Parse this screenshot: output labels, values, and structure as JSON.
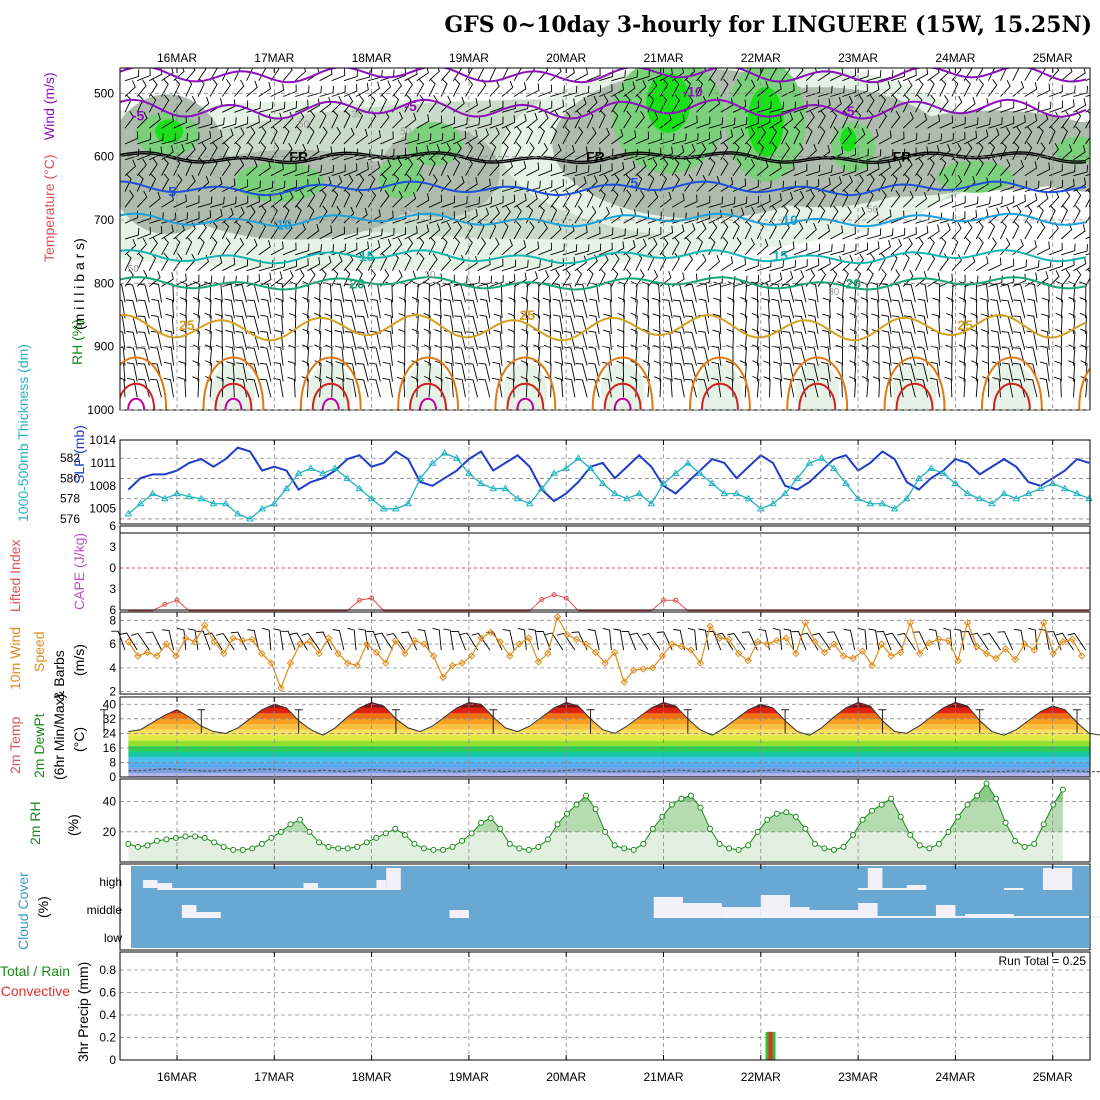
{
  "title": "GFS 0~10day 3-hourly for LINGUERE (15W, 15.25N)",
  "colors": {
    "rh_green_light": "#e6f2e6",
    "rh_green_mid": "#c9dcc9",
    "rh_gray": "#aebcae",
    "rh_green": "#7ccf7c",
    "rh_bright": "#19e019",
    "temp_neg": "#8a12b8",
    "temp_low": "#1e50d8",
    "temp_mid": "#1aa0dc",
    "temp_15": "#17b6b6",
    "temp_20": "#14a878",
    "temp_25": "#d4a020",
    "temp_30": "#e07a10",
    "temp_35": "#d02020",
    "temp_40": "#c000a0",
    "slp": "#1e3cc8",
    "thickness": "#20b4c0",
    "li": "#e05050",
    "cape": "#c050c8",
    "wind10": "#e08c1a",
    "rh2m": "#1a8a1a",
    "cloud": "#6aa8d4",
    "clear": "#f2f0f8",
    "precip_total": "#30c030",
    "precip_conv": "#e03030"
  },
  "chart_data": [
    {
      "name": "upper-air",
      "type": "heatmap",
      "dates": [
        "16MAR",
        "17MAR",
        "18MAR",
        "19MAR",
        "20MAR",
        "21MAR",
        "22MAR",
        "23MAR",
        "24MAR",
        "25MAR"
      ],
      "ylabels": [
        "RH (%)",
        "Temperature (°C)",
        "Wind (m/s)",
        "(m i l l i b a r s)"
      ],
      "yticks": [
        500,
        600,
        700,
        800,
        900,
        1000
      ],
      "ylim": [
        460,
        1000
      ],
      "contour_labels": [
        {
          "text": "-10",
          "t": 5.3,
          "p": 497
        },
        {
          "text": "-5",
          "t": -0.4,
          "p": 535
        },
        {
          "text": "-5",
          "t": 2.4,
          "p": 520
        },
        {
          "text": "-5",
          "t": 6.9,
          "p": 528
        },
        {
          "text": "FR",
          "t": 1.25,
          "p": 600
        },
        {
          "text": "FR",
          "t": 4.3,
          "p": 600
        },
        {
          "text": "FR",
          "t": 7.45,
          "p": 600
        },
        {
          "text": "5",
          "t": -0.05,
          "p": 655
        },
        {
          "text": "5",
          "t": 4.7,
          "p": 641
        },
        {
          "text": "10",
          "t": 1.1,
          "p": 707
        },
        {
          "text": "10",
          "t": 6.3,
          "p": 700
        },
        {
          "text": "15",
          "t": 1.95,
          "p": 757
        },
        {
          "text": "15",
          "t": 6.2,
          "p": 756
        },
        {
          "text": "20",
          "t": 1.85,
          "p": 800
        },
        {
          "text": "20",
          "t": 6.95,
          "p": 800
        },
        {
          "text": "25",
          "t": 0.1,
          "p": 866
        },
        {
          "text": "25",
          "t": 3.6,
          "p": 850
        },
        {
          "text": "25",
          "t": 8.1,
          "p": 866
        }
      ],
      "rh_labels": [
        {
          "text": "50",
          "t": 1.3,
          "p": 548
        },
        {
          "text": "30",
          "t": 1.85,
          "p": 532
        },
        {
          "text": "50",
          "t": 2.35,
          "p": 559
        },
        {
          "text": "50",
          "t": 2.35,
          "p": 685
        },
        {
          "text": "30",
          "t": 2.6,
          "p": 785
        },
        {
          "text": "50",
          "t": -0.45,
          "p": 776
        },
        {
          "text": "50",
          "t": 7.15,
          "p": 682
        },
        {
          "text": "30",
          "t": 6.75,
          "p": 812
        }
      ]
    },
    {
      "name": "slp-thickness",
      "type": "line",
      "ylabel_left": "1000-500mb Thickness (dm)",
      "ylabel_right": "SLP (mb)",
      "yticks_left": [
        576,
        578,
        580,
        582
      ],
      "yticks_right": [
        1005,
        1008,
        1011,
        1014
      ],
      "ylim_left": [
        575.5,
        583.8
      ],
      "ylim_right": [
        1003,
        1014
      ],
      "t_start": -0.5,
      "t_step": 0.125,
      "series": [
        {
          "name": "SLP (mb)",
          "axis": "right",
          "values": [
            1007.5,
            1009.0,
            1009.5,
            1009.5,
            1010.0,
            1011.0,
            1011.5,
            1010.5,
            1011.5,
            1013.0,
            1012.5,
            1010.0,
            1010.5,
            1010.0,
            1007.5,
            1008.5,
            1009.0,
            1010.0,
            1011.5,
            1012.0,
            1010.5,
            1011.0,
            1012.5,
            1011.5,
            1008.5,
            1008.0,
            1009.0,
            1010.0,
            1011.5,
            1012.5,
            1010.0,
            1011.0,
            1012.0,
            1010.5,
            1007.5,
            1006.0,
            1007.0,
            1008.5,
            1010.5,
            1011.0,
            1009.0,
            1010.5,
            1012.0,
            1010.5,
            1008.0,
            1007.0,
            1008.5,
            1010.0,
            1011.5,
            1011.0,
            1009.0,
            1010.5,
            1012.0,
            1011.0,
            1008.0,
            1007.5,
            1008.5,
            1010.0,
            1011.5,
            1012.0,
            1010.0,
            1011.0,
            1012.5,
            1011.5,
            1008.5,
            1007.5,
            1009.0,
            1010.0,
            1011.5,
            1011.0,
            1009.5,
            1010.5,
            1011.5,
            1010.5,
            1008.5,
            1008.0,
            1009.0,
            1010.0,
            1011.5,
            1011.0,
            1009.5,
            1010.5,
            1011.0
          ]
        },
        {
          "name": "1000-500mb Thickness (dm)",
          "axis": "left",
          "values": [
            576.5,
            577.5,
            578.5,
            578.0,
            578.5,
            578.2,
            578.0,
            577.5,
            577.5,
            576.5,
            576.0,
            577.0,
            577.5,
            579.0,
            580.5,
            581.0,
            580.5,
            581.0,
            580.0,
            579.0,
            578.0,
            577.0,
            577.0,
            577.5,
            580.0,
            581.5,
            582.5,
            582.0,
            580.5,
            579.5,
            579.0,
            579.0,
            578.0,
            577.5,
            579.0,
            580.5,
            581.0,
            582.0,
            581.0,
            579.5,
            578.5,
            578.0,
            578.5,
            577.5,
            579.5,
            580.5,
            581.5,
            580.5,
            579.5,
            578.5,
            578.5,
            578.0,
            577.0,
            577.5,
            578.5,
            580.0,
            581.5,
            582.0,
            581.0,
            579.5,
            578.0,
            577.5,
            577.5,
            577.0,
            578.0,
            580.0,
            581.0,
            580.5,
            579.5,
            578.5,
            578.0,
            577.5,
            578.5,
            578.0,
            578.5,
            579.0,
            579.5,
            579.0,
            578.5,
            578.0,
            578.5,
            578.0,
            577.5
          ]
        }
      ]
    },
    {
      "name": "lifted-index",
      "type": "line",
      "ylabel": "Lifted Index",
      "ylabel2": "CAPE (J/kg)",
      "yticks": [
        -6,
        -3,
        0,
        3,
        6
      ],
      "ytick_labels": [
        "6",
        "3",
        "0",
        "3",
        "6"
      ],
      "ylim": [
        -6,
        6
      ],
      "t_start": -0.5,
      "t_step": 0.125,
      "series": [
        {
          "name": "Lifted Index",
          "values": [
            7,
            7,
            6.3,
            5.2,
            4.6,
            6.3,
            7,
            7,
            7,
            7,
            7,
            6.3,
            7,
            7,
            7,
            7,
            7,
            7,
            6.2,
            4.6,
            4.3,
            6.2,
            7,
            7,
            7,
            7,
            7,
            7,
            7,
            7,
            7,
            7,
            7,
            6.2,
            4.5,
            3.8,
            4.3,
            6.3,
            7,
            7,
            7,
            7,
            7,
            6.3,
            4.6,
            4.6,
            6.3,
            7,
            7,
            7,
            7,
            7,
            7,
            6.4,
            7,
            7,
            7,
            7,
            7,
            7,
            7,
            7,
            7,
            7,
            7,
            7,
            7,
            7,
            7,
            7,
            7,
            7,
            7,
            7,
            7,
            7,
            7,
            7,
            7,
            7,
            7,
            7,
            7
          ]
        }
      ]
    },
    {
      "name": "10m-wind",
      "type": "line",
      "ylabel": "10m Wind Speed & Barbs (m/s)",
      "yticks": [
        2,
        4,
        6,
        8
      ],
      "ylim": [
        1.8,
        8.7
      ],
      "t_start": -0.5,
      "t_step": 0.125,
      "series": [
        {
          "name": "10m Wind Speed",
          "values": [
            6.2,
            5.0,
            5.3,
            5.0,
            6.0,
            5.0,
            6.5,
            6.2,
            7.6,
            6.2,
            5.2,
            6.5,
            6.3,
            6.4,
            5.2,
            4.4,
            2.3,
            4.4,
            6.0,
            6.2,
            5.2,
            6.5,
            5.2,
            4.4,
            4.2,
            6.0,
            5.3,
            4.4,
            6.3,
            5.2,
            6.3,
            6.0,
            5.0,
            3.2,
            4.2,
            4.4,
            5.0,
            6.5,
            7.0,
            6.2,
            5.0,
            6.0,
            6.5,
            4.5,
            5.2,
            8.3,
            6.8,
            6.4,
            6.0,
            5.3,
            4.4,
            5.3,
            2.8,
            3.8,
            3.9,
            4.0,
            5.0,
            6.0,
            5.8,
            5.5,
            4.4,
            7.5,
            6.5,
            6.4,
            5.2,
            4.6,
            6.2,
            6.0,
            6.3,
            6.5,
            5.2,
            7.8,
            6.2,
            5.3,
            6.0,
            5.0,
            4.8,
            5.4,
            4.2,
            6.0,
            5.0,
            5.3,
            7.8,
            5.2,
            6.1,
            6.4,
            6.3,
            4.6,
            7.8,
            5.8,
            5.2,
            4.8,
            5.6,
            4.7,
            6.0,
            5.5,
            7.8,
            5.2,
            6.2,
            6.4,
            5.0,
            6.5,
            5.5
          ]
        }
      ]
    },
    {
      "name": "2m-temp",
      "type": "area",
      "ylabel": "2m Temp 2m DewPt (6hr Min/Max) (°C)",
      "yticks": [
        0,
        8,
        16,
        24,
        32,
        40
      ],
      "ytick_labels": [
        "0",
        "8",
        "16",
        "24",
        "32",
        "40"
      ],
      "ylim": [
        0,
        44
      ],
      "t_start": -0.5,
      "t_step": 0.125,
      "series": [
        {
          "name": "2m Temp",
          "values": [
            25,
            26,
            30,
            34,
            37,
            33,
            28,
            25,
            24,
            27,
            32,
            37,
            40,
            38,
            31,
            26,
            23,
            27,
            33,
            38,
            41,
            39,
            32,
            27,
            25,
            28,
            33,
            38,
            41,
            40,
            33,
            27,
            25,
            28,
            33,
            38,
            41,
            39,
            32,
            26,
            24,
            28,
            33,
            38,
            41,
            39,
            32,
            26,
            23,
            27,
            32,
            37,
            40,
            38,
            31,
            25,
            23,
            27,
            33,
            38,
            41,
            39,
            31,
            25,
            24,
            28,
            33,
            38,
            41,
            39,
            31,
            25,
            23,
            26,
            31,
            36,
            39,
            37,
            30,
            24,
            23,
            26,
            31,
            36,
            39,
            37,
            30,
            24,
            22,
            25,
            29,
            24
          ]
        },
        {
          "name": "2m DewPt",
          "values": [
            3.4,
            3.5,
            4.0,
            4.5,
            4.2,
            3.8,
            3.4,
            3.2,
            3.8,
            3.5,
            3.9,
            4.4,
            4.1,
            3.6,
            3.3,
            3.2,
            3.7,
            3.3,
            3.0,
            3.5,
            4.0,
            3.6,
            3.2,
            3.0,
            3.2,
            3.8,
            3.5,
            3.0,
            3.5,
            3.8,
            3.2,
            3.0,
            3.3,
            3.7,
            3.4,
            3.1,
            3.6,
            4.0,
            3.6,
            3.1,
            3.0,
            3.4,
            3.2,
            2.9,
            3.3,
            3.9,
            3.5,
            3.0,
            3.2,
            3.6,
            3.3,
            3.0,
            3.4,
            3.9,
            3.4,
            3.1,
            3.0,
            3.5,
            3.2,
            2.9,
            3.4,
            3.8,
            3.4,
            3.0,
            3.1,
            3.5,
            3.2,
            3.0,
            3.3,
            3.6,
            3.3,
            2.9,
            3.0,
            3.4,
            3.1,
            2.8,
            3.2,
            3.7,
            3.3,
            2.9,
            3.0,
            3.4,
            3.1,
            2.9
          ]
        }
      ]
    },
    {
      "name": "2m-rh",
      "type": "line",
      "ylabel": "2m RH (%)",
      "yticks": [
        20,
        40
      ],
      "ylim": [
        0,
        55
      ],
      "t_start": -0.5,
      "t_step": 0.125,
      "series": [
        {
          "name": "2m RH",
          "values": [
            12,
            10,
            11,
            14,
            15,
            16,
            17,
            17,
            16,
            13,
            10,
            8,
            8,
            9,
            12,
            16,
            20,
            25,
            28,
            20,
            13,
            10,
            9,
            9,
            10,
            13,
            16,
            19,
            22,
            18,
            12,
            9,
            8,
            8,
            10,
            14,
            19,
            26,
            29,
            22,
            12,
            9,
            8,
            10,
            15,
            25,
            32,
            38,
            44,
            35,
            20,
            11,
            9,
            8,
            12,
            22,
            30,
            38,
            42,
            44,
            36,
            22,
            12,
            9,
            8,
            11,
            20,
            28,
            32,
            33,
            30,
            22,
            12,
            9,
            8,
            10,
            18,
            28,
            34,
            38,
            42,
            30,
            18,
            11,
            9,
            12,
            20,
            30,
            38,
            44,
            52,
            42,
            26,
            14,
            10,
            12,
            25,
            38,
            48
          ]
        }
      ]
    },
    {
      "name": "cloud-cover",
      "type": "heatmap",
      "ylabel": "Cloud Cover (%)",
      "levels": [
        "high",
        "middle",
        "low"
      ]
    },
    {
      "name": "precip",
      "type": "bar",
      "ylabel": "3hr Precip (mm)",
      "ylabel2": "Total / Rain",
      "ylabel3": "Convective",
      "yticks": [
        0,
        0.2,
        0.4,
        0.6,
        0.8
      ],
      "ytick_labels": [
        "0",
        "0.2",
        "0.4",
        "0.6",
        "0.8"
      ],
      "ylim": [
        0,
        0.96
      ],
      "annotation": "Run Total = 0.25",
      "bars": [
        {
          "t": 6.1,
          "total": 0.25,
          "convective": 0.25
        }
      ]
    }
  ]
}
